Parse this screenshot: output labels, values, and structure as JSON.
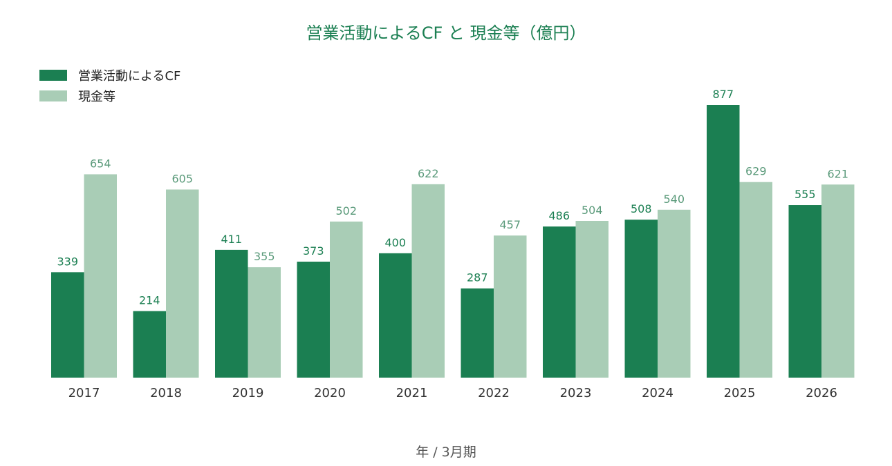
{
  "chart_data": {
    "type": "bar",
    "title": "営業活動によるCF と 現金等（億円）",
    "xlabel": "年 / 3月期",
    "ylabel": "",
    "categories": [
      "2017",
      "2018",
      "2019",
      "2020",
      "2021",
      "2022",
      "2023",
      "2024",
      "2025",
      "2026"
    ],
    "series": [
      {
        "name": "営業活動によるCF",
        "color": "#1b7f52",
        "values": [
          339,
          214,
          411,
          373,
          400,
          287,
          486,
          508,
          877,
          555
        ]
      },
      {
        "name": "現金等",
        "color": "#a9cdb6",
        "values": [
          654,
          605,
          355,
          502,
          622,
          457,
          504,
          540,
          629,
          621
        ]
      }
    ],
    "ylim": [
      0,
      877
    ],
    "grid": false,
    "legend_position": "top-left"
  }
}
